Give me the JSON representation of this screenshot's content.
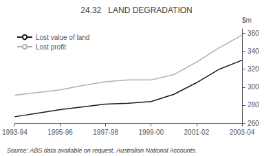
{
  "chart_data": {
    "type": "line",
    "title": "24.32   LAND DEGRADATION",
    "y_label": "$m",
    "annotations": [
      "Source: ABS data available on request, Australian National Accounts."
    ],
    "categories": [
      "1993-94",
      null,
      "1995-96",
      null,
      "1997-98",
      null,
      "1999-00",
      null,
      "2001-02",
      null,
      "2003-04"
    ],
    "series": [
      {
        "name": "Lost value of land",
        "color": "#1a1a1a",
        "values": [
          267,
          271,
          275,
          278,
          281,
          282,
          284,
          292,
          305,
          320,
          330
        ]
      },
      {
        "name": "Lost profit",
        "color": "#b0b0b0",
        "values": [
          291,
          294,
          297,
          302,
          306,
          308,
          308,
          314,
          328,
          344,
          358
        ]
      }
    ],
    "ylim": [
      260,
      365
    ],
    "yticks": [
      260,
      280,
      300,
      320,
      340,
      360
    ],
    "grid": false,
    "legend": "upper left"
  }
}
